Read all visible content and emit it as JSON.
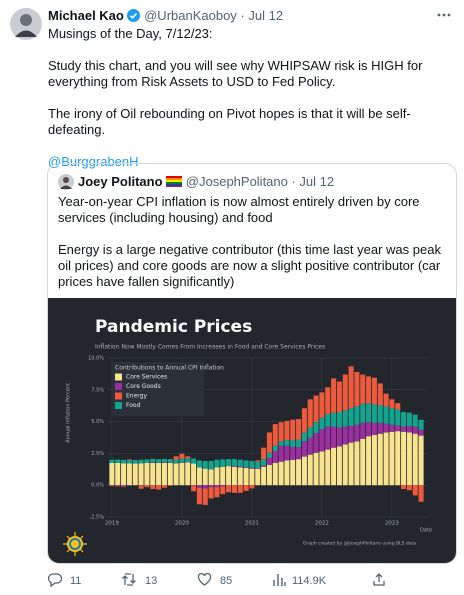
{
  "tweet": {
    "name": "Michael Kao",
    "handle": "@UrbanKaoboy · Jul 12",
    "paragraphs": [
      "Musings of the Day, 7/12/23:",
      "Study this chart, and you will see why WHIPSAW risk is HIGH for everything from Risk Assets to USD to Fed Policy.",
      "The irony of Oil rebounding on Pivot hopes is that it will be self-defeating."
    ],
    "mention": "@BurggrabenH",
    "stats": {
      "replies": "11",
      "retweets": "13",
      "likes": "85",
      "views": "114.9K"
    }
  },
  "quote": {
    "name": "Joey Politano",
    "handle": "@JosephPolitano · Jul 12",
    "paragraphs": [
      "Year-on-year CPI inflation is now almost entirely driven by core services (including housing) and food",
      "Energy is a large negative contributor (this time last year was peak oil prices) and core goods are now a slight positive contributor (car prices have fallen significantly)"
    ]
  },
  "chart_data": {
    "type": "stacked-bar",
    "title": "Pandemic Prices",
    "subtitle": "Inflation Now Mostly Comes From Increases in Food and Core Services Prices",
    "y_label": "Annual Inflation Percent",
    "x_label": "Date",
    "caption": "Graph created by @JosephPolitano using BLS data",
    "legend_title": "Contributions to Annual CPI Inflation",
    "legend": "top-left",
    "grid": true,
    "categories": [
      "2019",
      null,
      null,
      null,
      null,
      null,
      null,
      null,
      null,
      null,
      null,
      null,
      "2020",
      null,
      null,
      null,
      null,
      null,
      null,
      null,
      null,
      null,
      null,
      null,
      "2021",
      null,
      null,
      null,
      null,
      null,
      null,
      null,
      null,
      null,
      null,
      null,
      "2022",
      null,
      null,
      null,
      null,
      null,
      null,
      null,
      null,
      null,
      null,
      null,
      "2023",
      null,
      null,
      null,
      null,
      null
    ],
    "ylim": [
      -2.5,
      10
    ],
    "yticks": [
      {
        "value": -2.5,
        "label": "-2.5%"
      },
      {
        "value": 0,
        "label": "0.0%"
      },
      {
        "value": 2.5,
        "label": "2.5%"
      },
      {
        "value": 5,
        "label": "5.0%"
      },
      {
        "value": 7.5,
        "label": "7.5%"
      },
      {
        "value": 10,
        "label": "10.0%"
      }
    ],
    "series": [
      {
        "name": "Core Services",
        "color": "#f8e38f",
        "values": [
          1.75,
          1.75,
          1.72,
          1.72,
          1.7,
          1.72,
          1.75,
          1.75,
          1.75,
          1.75,
          1.75,
          1.72,
          1.75,
          1.8,
          1.7,
          1.4,
          1.3,
          1.25,
          1.4,
          1.45,
          1.5,
          1.45,
          1.4,
          1.35,
          1.3,
          1.3,
          1.45,
          1.6,
          1.75,
          1.85,
          1.95,
          2.0,
          2.05,
          2.25,
          2.4,
          2.55,
          2.65,
          2.8,
          2.95,
          3.05,
          3.2,
          3.35,
          3.45,
          3.65,
          3.85,
          3.95,
          4.05,
          4.15,
          4.2,
          4.25,
          4.2,
          4.15,
          4.05,
          3.9
        ]
      },
      {
        "name": "Core Goods",
        "color": "#9b2f9f",
        "values": [
          -0.05,
          -0.05,
          -0.08,
          -0.05,
          0,
          -0.03,
          0,
          0.05,
          0.02,
          0.05,
          0.02,
          0.02,
          0.02,
          0.02,
          -0.03,
          -0.2,
          -0.25,
          -0.15,
          -0.15,
          -0.1,
          0,
          0.05,
          0.05,
          0.05,
          0.05,
          0.05,
          0.1,
          0.55,
          0.95,
          1.25,
          1.15,
          1.0,
          0.95,
          1.2,
          1.35,
          1.55,
          1.75,
          1.8,
          1.65,
          1.5,
          1.4,
          1.3,
          1.3,
          1.25,
          1.1,
          0.95,
          0.85,
          0.7,
          0.55,
          0.45,
          0.4,
          0.5,
          0.55,
          0.45
        ]
      },
      {
        "name": "Energy",
        "color": "#ee5a3d",
        "values": [
          -0.03,
          -0.05,
          -0.05,
          0.05,
          0,
          -0.25,
          -0.15,
          -0.3,
          -0.35,
          -0.2,
          -0.05,
          0.25,
          0.4,
          0.15,
          -0.45,
          -1.3,
          -1.3,
          -0.9,
          -0.8,
          -0.6,
          -0.55,
          -0.6,
          -0.6,
          -0.45,
          -0.25,
          0.1,
          0.9,
          1.6,
          1.7,
          1.5,
          1.5,
          1.6,
          1.6,
          1.9,
          2.2,
          2.1,
          2.0,
          2.1,
          2.7,
          2.4,
          2.8,
          3.3,
          2.7,
          2.3,
          2.1,
          2.1,
          1.7,
          1.0,
          0.7,
          0.5,
          -0.3,
          -0.4,
          -0.8,
          -1.3
        ]
      },
      {
        "name": "Food",
        "color": "#12a48f",
        "values": [
          0.25,
          0.26,
          0.27,
          0.27,
          0.28,
          0.28,
          0.28,
          0.28,
          0.27,
          0.27,
          0.28,
          0.28,
          0.3,
          0.3,
          0.4,
          0.55,
          0.6,
          0.65,
          0.6,
          0.58,
          0.55,
          0.55,
          0.55,
          0.55,
          0.55,
          0.5,
          0.5,
          0.4,
          0.4,
          0.35,
          0.45,
          0.55,
          0.6,
          0.7,
          0.8,
          0.85,
          0.9,
          1.0,
          1.1,
          1.2,
          1.3,
          1.4,
          1.45,
          1.5,
          1.5,
          1.45,
          1.4,
          1.35,
          1.3,
          1.25,
          1.15,
          1.05,
          0.95,
          0.8
        ]
      }
    ]
  }
}
